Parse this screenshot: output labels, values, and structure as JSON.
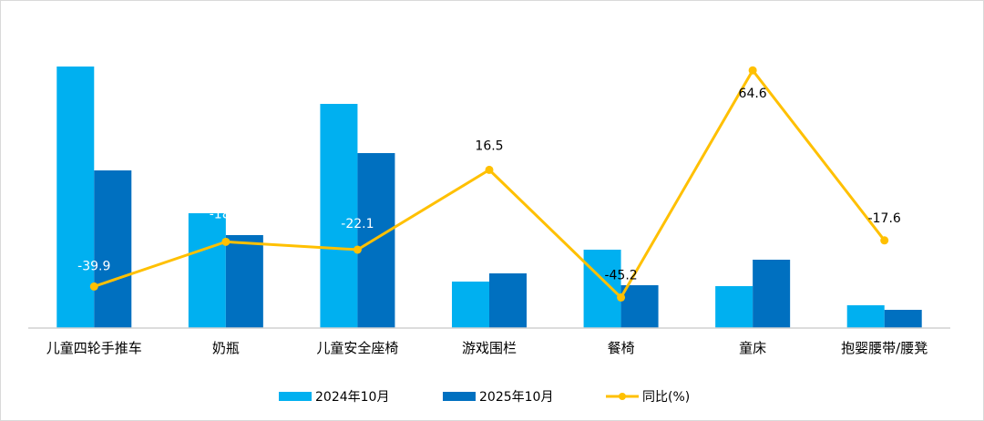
{
  "chart_data": {
    "type": "bar+line",
    "categories": [
      "儿童四轮手推车",
      "奶瓶",
      "儿童安全座椅",
      "游戏围栏",
      "餐椅",
      "童床",
      "抱婴腰带/腰凳"
    ],
    "series": [
      {
        "name": "2024年10月",
        "type": "bar",
        "axis": "primary",
        "color": "#00b0f0",
        "values": [
          287,
          126,
          246,
          51,
          86,
          46,
          25
        ]
      },
      {
        "name": "2025年10月",
        "type": "bar",
        "axis": "primary",
        "color": "#0070c0",
        "values": [
          173,
          102,
          192,
          60,
          47,
          75,
          20
        ]
      },
      {
        "name": "同比(%)",
        "type": "line",
        "axis": "secondary",
        "color": "#ffc000",
        "values": [
          -39.9,
          -18.3,
          -22.1,
          16.5,
          -45.2,
          64.6,
          -17.6
        ],
        "labels": [
          "-39.9",
          "-18.3",
          "-22.1",
          "16.5",
          "-45.2",
          "64.6",
          "-17.6"
        ]
      }
    ],
    "primary_ylim": [
      0,
      320
    ],
    "secondary_ylim": [
      -60,
      81
    ],
    "axes_visible": false,
    "grid": false,
    "legend_position": "bottom",
    "title": "",
    "xlabel": "",
    "ylabel": ""
  }
}
